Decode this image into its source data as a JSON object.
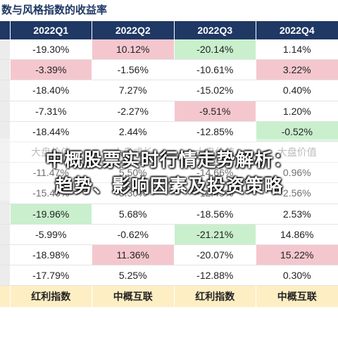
{
  "title": "数与风格指数的收益率",
  "overlay": {
    "line1": "中概股票实时行情走势解析：",
    "line2": "趋势、影响因素及投资策略"
  },
  "table": {
    "headers": [
      "2022Q1",
      "2022Q2",
      "2022Q3",
      "2022Q4"
    ],
    "rows": [
      {
        "cells": [
          "-19.30%",
          "10.12%",
          "-20.14%",
          "1.14%"
        ],
        "colors": [
          "",
          "red",
          "green",
          ""
        ]
      },
      {
        "cells": [
          "-3.39%",
          "-1.56%",
          "-10.61%",
          "3.22%"
        ],
        "colors": [
          "red",
          "",
          "",
          "red"
        ]
      },
      {
        "cells": [
          "-18.40%",
          "7.27%",
          "-15.02%",
          "0.40%"
        ],
        "colors": [
          "",
          "",
          "",
          ""
        ]
      },
      {
        "cells": [
          "-7.31%",
          "-2.27%",
          "-9.51%",
          "1.20%"
        ],
        "colors": [
          "",
          "",
          "red",
          ""
        ]
      },
      {
        "cells": [
          "-18.44%",
          "2.44%",
          "-12.85%",
          "-0.52%"
        ],
        "colors": [
          "",
          "",
          "",
          "green"
        ]
      },
      {
        "cells": [
          "大盘价值",
          "大盘成长",
          "大盘价值",
          "大盘价值"
        ],
        "colors": [
          "",
          "",
          "",
          ""
        ],
        "faded": true
      },
      {
        "cells": [
          "-11.47%",
          "5.50%",
          "-14.66%",
          "0.96%"
        ],
        "colors": [
          "",
          "",
          "",
          ""
        ]
      },
      {
        "cells": [
          "-15.46%",
          "3.30%",
          "-12.45%",
          "2.56%"
        ],
        "colors": [
          "",
          "",
          "",
          ""
        ]
      },
      {
        "cells": [
          "-19.96%",
          "5.68%",
          "-18.56%",
          "2.53%"
        ],
        "colors": [
          "green",
          "",
          "",
          ""
        ]
      },
      {
        "cells": [
          "-5.99%",
          "-0.62%",
          "-21.21%",
          "14.86%"
        ],
        "colors": [
          "",
          "",
          "green",
          ""
        ]
      },
      {
        "cells": [
          "-18.98%",
          "11.36%",
          "-20.07%",
          "15.22%"
        ],
        "colors": [
          "",
          "red",
          "",
          "red"
        ]
      },
      {
        "cells": [
          "-17.79%",
          "5.25%",
          "-12.88%",
          "0.30%"
        ],
        "colors": [
          "",
          "",
          "",
          ""
        ]
      }
    ],
    "footer": [
      "红利指数",
      "中概互联",
      "红利指数",
      "中概互联"
    ]
  }
}
